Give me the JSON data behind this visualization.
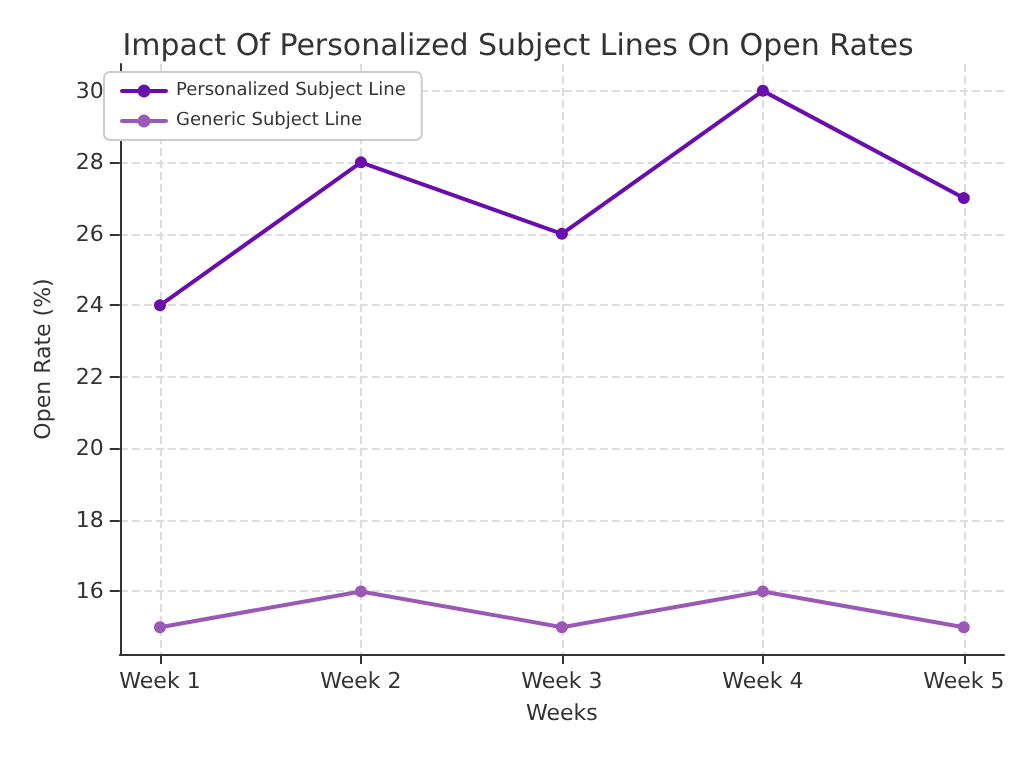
{
  "chart_data": {
    "type": "line",
    "title": "Impact Of Personalized Subject Lines On Open Rates",
    "xlabel": "Weeks",
    "ylabel": "Open Rate (%)",
    "categories": [
      "Week 1",
      "Week 2",
      "Week 3",
      "Week 4",
      "Week 5"
    ],
    "series": [
      {
        "name": "Personalized Subject Line",
        "color": "#6a0dad",
        "values": [
          24,
          28,
          26,
          30,
          27
        ]
      },
      {
        "name": "Generic Subject Line",
        "color": "#9b59b6",
        "values": [
          15,
          16,
          15,
          16,
          15
        ]
      }
    ],
    "ylim": [
      14.25,
      30.75
    ],
    "yticks": [
      16,
      18,
      20,
      22,
      24,
      26,
      28,
      30
    ],
    "grid": true,
    "legend": "top left",
    "marker": "circle",
    "line_style": "solid"
  }
}
